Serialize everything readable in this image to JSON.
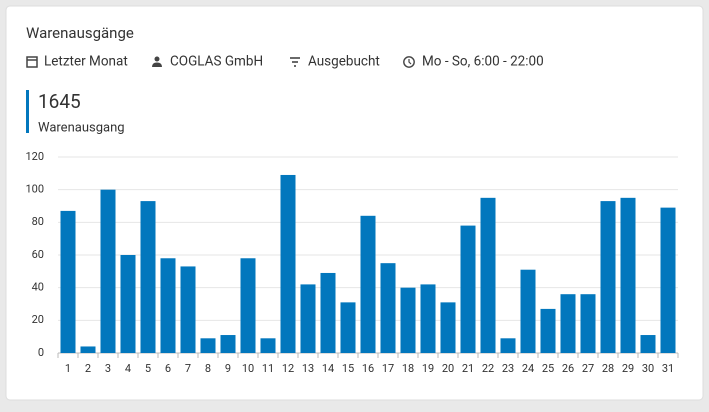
{
  "header": {
    "title": "Warenausgänge",
    "filters": [
      "Letzter Monat",
      "COGLAS GmbH",
      "Ausgebucht",
      "Mo - So, 6:00 - 22:00"
    ]
  },
  "kpi": {
    "value": 1645,
    "label": "Warenausgang"
  },
  "chart_data": {
    "type": "bar",
    "categories": [
      1,
      2,
      3,
      4,
      5,
      6,
      7,
      8,
      9,
      10,
      11,
      12,
      13,
      14,
      15,
      16,
      17,
      18,
      19,
      20,
      21,
      22,
      23,
      24,
      25,
      26,
      27,
      28,
      29,
      30,
      31
    ],
    "values": [
      87,
      4,
      100,
      60,
      93,
      58,
      53,
      9,
      11,
      58,
      9,
      109,
      42,
      49,
      31,
      84,
      55,
      40,
      42,
      31,
      78,
      95,
      9,
      51,
      27,
      36,
      36,
      93,
      95,
      11,
      89
    ],
    "color": "#0277bd",
    "ylim": [
      0,
      120
    ],
    "yticks": [
      0,
      20,
      40,
      60,
      80,
      100,
      120
    ],
    "grid": true
  }
}
